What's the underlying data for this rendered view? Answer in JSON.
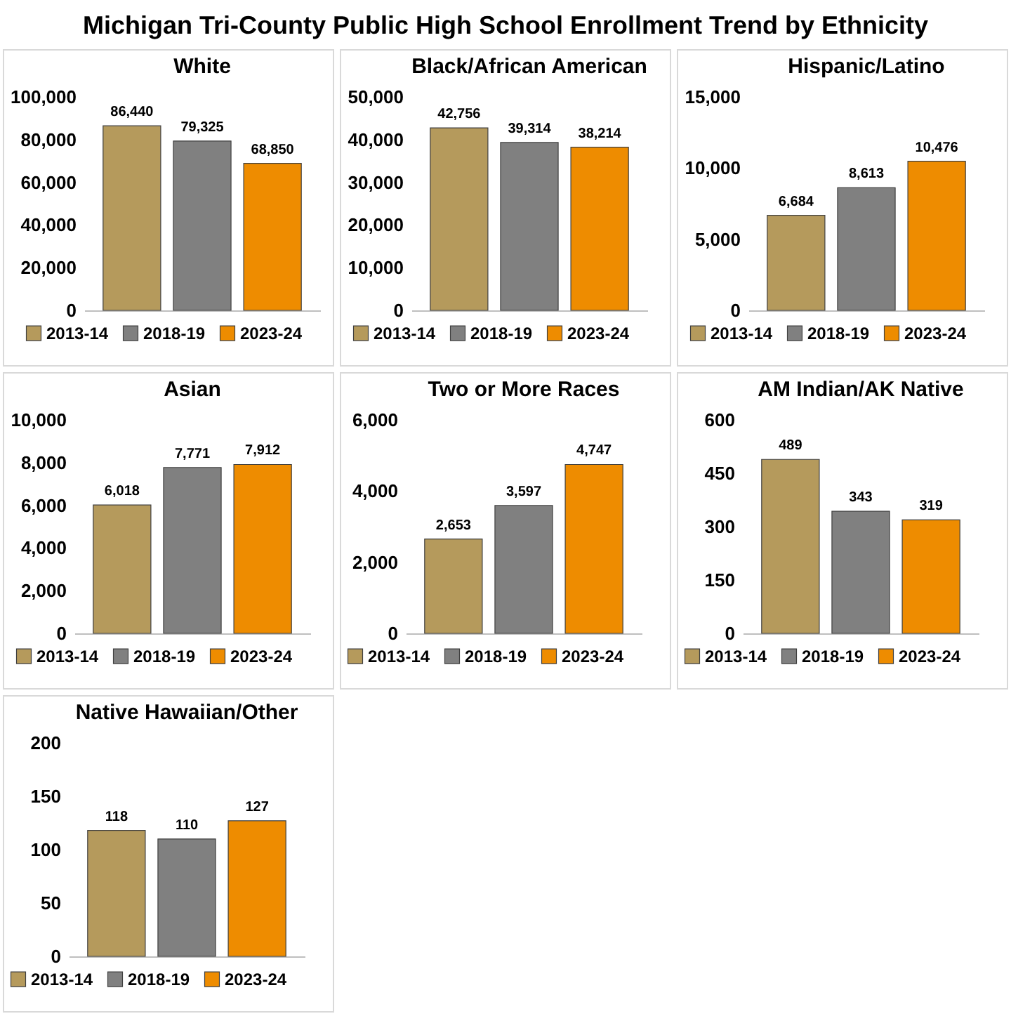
{
  "chart_data": [
    {
      "type": "bar",
      "title": "White",
      "annotations": [
        "Michigan Tri-County Public High School Enrollment Trend by Ethnicity"
      ],
      "categories": [
        null
      ],
      "series": [
        {
          "name": "2013-14",
          "color": "#b59a5c",
          "values": [
            86440
          ],
          "value_labels": [
            "86,440"
          ]
        },
        {
          "name": "2018-19",
          "color": "#808080",
          "values": [
            79325
          ],
          "value_labels": [
            "79,325"
          ]
        },
        {
          "name": "2023-24",
          "color": "#ee8c00",
          "values": [
            68850
          ],
          "value_labels": [
            "68,850"
          ]
        }
      ],
      "ylim": [
        0,
        100000
      ],
      "yticks": [
        0,
        {
          "value": 20000,
          "label": "20,000"
        },
        {
          "value": 40000,
          "label": "40,000"
        },
        {
          "value": 60000,
          "label": "60,000"
        },
        {
          "value": 80000,
          "label": "80,000"
        },
        {
          "value": 100000,
          "label": "100,000"
        }
      ],
      "legend": "bottom",
      "tick_labels": "y"
    },
    {
      "type": "bar",
      "title": "Black/African American",
      "categories": [
        null
      ],
      "series": [
        {
          "name": "2013-14",
          "color": "#b59a5c",
          "values": [
            42756
          ],
          "value_labels": [
            "42,756"
          ]
        },
        {
          "name": "2018-19",
          "color": "#808080",
          "values": [
            39314
          ],
          "value_labels": [
            "39,314"
          ]
        },
        {
          "name": "2023-24",
          "color": "#ee8c00",
          "values": [
            38214
          ],
          "value_labels": [
            "38,214"
          ]
        }
      ],
      "ylim": [
        0,
        50000
      ],
      "yticks": [
        0,
        {
          "value": 10000,
          "label": "10,000"
        },
        {
          "value": 20000,
          "label": "20,000"
        },
        {
          "value": 30000,
          "label": "30,000"
        },
        {
          "value": 40000,
          "label": "40,000"
        },
        {
          "value": 50000,
          "label": "50,000"
        }
      ],
      "legend": "bottom",
      "tick_labels": "y"
    },
    {
      "type": "bar",
      "title": "Hispanic/Latino",
      "categories": [
        null
      ],
      "series": [
        {
          "name": "2013-14",
          "color": "#b59a5c",
          "values": [
            6684
          ],
          "value_labels": [
            "6,684"
          ]
        },
        {
          "name": "2018-19",
          "color": "#808080",
          "values": [
            8613
          ],
          "value_labels": [
            "8,613"
          ]
        },
        {
          "name": "2023-24",
          "color": "#ee8c00",
          "values": [
            10476
          ],
          "value_labels": [
            "10,476"
          ]
        }
      ],
      "ylim": [
        0,
        15000
      ],
      "yticks": [
        0,
        {
          "value": 5000,
          "label": "5,000"
        },
        {
          "value": 10000,
          "label": "10,000"
        },
        {
          "value": 15000,
          "label": "15,000"
        }
      ],
      "legend": "bottom",
      "tick_labels": "y"
    },
    {
      "type": "bar",
      "title": "Asian",
      "categories": [
        null
      ],
      "series": [
        {
          "name": "2013-14",
          "color": "#b59a5c",
          "values": [
            6018
          ],
          "value_labels": [
            "6,018"
          ]
        },
        {
          "name": "2018-19",
          "color": "#808080",
          "values": [
            7771
          ],
          "value_labels": [
            "7,771"
          ]
        },
        {
          "name": "2023-24",
          "color": "#ee8c00",
          "values": [
            7912
          ],
          "value_labels": [
            "7,912"
          ]
        }
      ],
      "ylim": [
        0,
        10000
      ],
      "yticks": [
        0,
        {
          "value": 2000,
          "label": "2,000"
        },
        {
          "value": 4000,
          "label": "4,000"
        },
        {
          "value": 6000,
          "label": "6,000"
        },
        {
          "value": 8000,
          "label": "8,000"
        },
        {
          "value": 10000,
          "label": "10,000"
        }
      ],
      "legend": "bottom",
      "tick_labels": "y"
    },
    {
      "type": "bar",
      "title": "Two or More Races",
      "categories": [
        null
      ],
      "series": [
        {
          "name": "2013-14",
          "color": "#b59a5c",
          "values": [
            2653
          ],
          "value_labels": [
            "2,653"
          ]
        },
        {
          "name": "2018-19",
          "color": "#808080",
          "values": [
            3597
          ],
          "value_labels": [
            "3,597"
          ]
        },
        {
          "name": "2023-24",
          "color": "#ee8c00",
          "values": [
            4747
          ],
          "value_labels": [
            "4,747"
          ]
        }
      ],
      "ylim": [
        0,
        6000
      ],
      "yticks": [
        0,
        {
          "value": 2000,
          "label": "2,000"
        },
        {
          "value": 4000,
          "label": "4,000"
        },
        {
          "value": 6000,
          "label": "6,000"
        }
      ],
      "legend": "bottom",
      "tick_labels": "y"
    },
    {
      "type": "bar",
      "title": "AM Indian/AK Native",
      "categories": [
        null
      ],
      "series": [
        {
          "name": "2013-14",
          "color": "#b59a5c",
          "values": [
            489
          ]
        },
        {
          "name": "2018-19",
          "color": "#808080",
          "values": [
            343
          ]
        },
        {
          "name": "2023-24",
          "color": "#ee8c00",
          "values": [
            319
          ]
        }
      ],
      "data_labels": true,
      "ylim": [
        0,
        600
      ],
      "yticks": [
        0,
        150,
        300,
        450,
        600
      ],
      "legend": "bottom",
      "tick_labels": "y"
    },
    {
      "type": "bar",
      "title": "Native Hawaiian/Other",
      "categories": [
        null
      ],
      "series": [
        {
          "name": "2013-14",
          "color": "#b59a5c",
          "values": [
            118
          ]
        },
        {
          "name": "2018-19",
          "color": "#808080",
          "values": [
            110
          ]
        },
        {
          "name": "2023-24",
          "color": "#ee8c00",
          "values": [
            127
          ]
        }
      ],
      "data_labels": true,
      "ylim": [
        0,
        200
      ],
      "yticks": [
        0,
        50,
        100,
        150,
        200
      ],
      "legend": "bottom",
      "tick_labels": "y"
    }
  ]
}
